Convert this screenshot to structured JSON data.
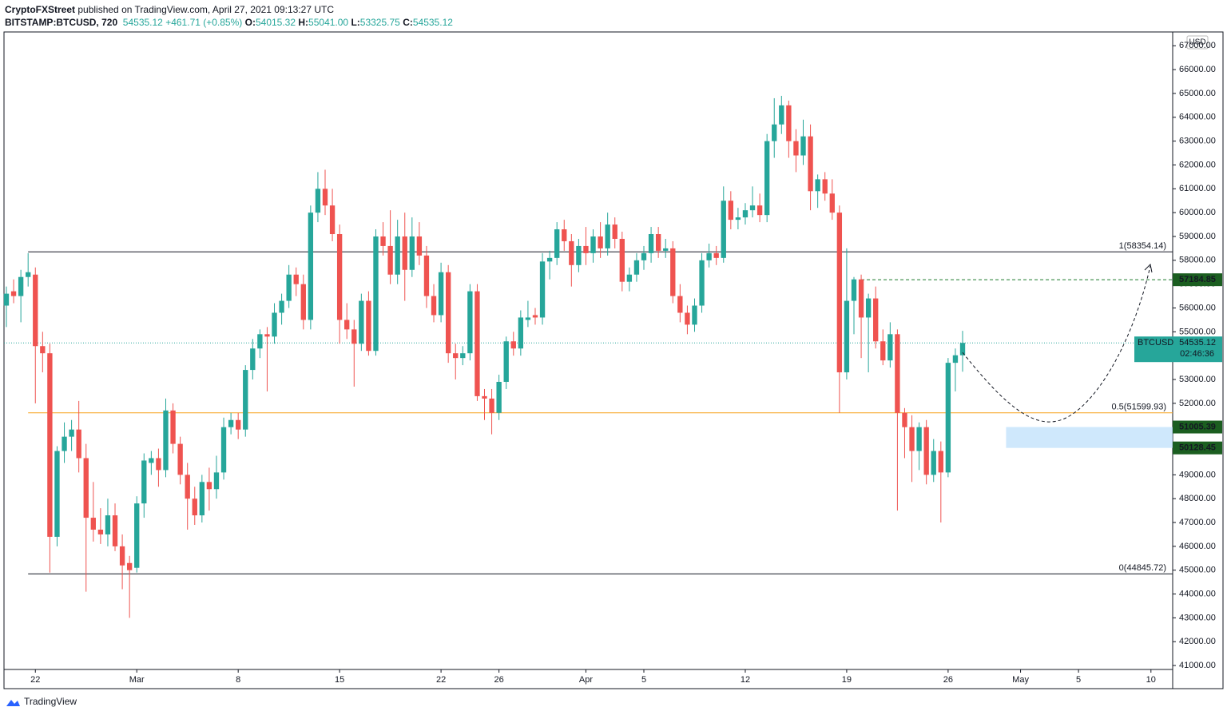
{
  "header": {
    "publisher": "CryptoFXStreet",
    "published": "published on TradingView.com, April 27, 2021 09:13:27 UTC",
    "symbol": "BITSTAMP:BTCUSD, 720",
    "last": "54535.12",
    "change": "+461.71 (+0.85%)",
    "o_label": "O:",
    "o": "54015.32",
    "h_label": "H:",
    "h": "55041.00",
    "l_label": "L:",
    "l": "53325.75",
    "c_label": "C:",
    "c": "54535.12"
  },
  "footer": {
    "brand": "TradingView"
  },
  "chart_data": {
    "type": "candlestick",
    "currency": "USD",
    "up_color": "#26a69a",
    "down_color": "#ef5350",
    "xlim": [
      -0.33,
      161
    ],
    "ylim": [
      40030,
      67580
    ],
    "xticks": [
      {
        "value": 4,
        "label": "22"
      },
      {
        "value": 18,
        "label": "Mar"
      },
      {
        "value": 32,
        "label": "8"
      },
      {
        "value": 46,
        "label": "15"
      },
      {
        "value": 60,
        "label": "22"
      },
      {
        "value": 68,
        "label": "26"
      },
      {
        "value": 80,
        "label": "Apr"
      },
      {
        "value": 88,
        "label": "5"
      },
      {
        "value": 102,
        "label": "12"
      },
      {
        "value": 116,
        "label": "19"
      },
      {
        "value": 130,
        "label": "26"
      },
      {
        "value": 140,
        "label": "May"
      },
      {
        "value": 148,
        "label": "5"
      },
      {
        "value": 158,
        "label": "10"
      }
    ],
    "yticks": [
      {
        "value": 41000,
        "label": "41000.00"
      },
      {
        "value": 42000,
        "label": "42000.00"
      },
      {
        "value": 43000,
        "label": "43000.00"
      },
      {
        "value": 44000,
        "label": "44000.00"
      },
      {
        "value": 45000,
        "label": "45000.00"
      },
      {
        "value": 46000,
        "label": "46000.00"
      },
      {
        "value": 47000,
        "label": "47000.00"
      },
      {
        "value": 48000,
        "label": "48000.00"
      },
      {
        "value": 49000,
        "label": "49000.00"
      },
      {
        "value": 50000,
        "label": "50000.00"
      },
      {
        "value": 51000,
        "label": "51000.00"
      },
      {
        "value": 52000,
        "label": "52000.00"
      },
      {
        "value": 53000,
        "label": "53000.00"
      },
      {
        "value": 54000,
        "label": "54000.00"
      },
      {
        "value": 55000,
        "label": "55000.00"
      },
      {
        "value": 56000,
        "label": "56000.00"
      },
      {
        "value": 57000,
        "label": "57000.00"
      },
      {
        "value": 58000,
        "label": "58000.00"
      },
      {
        "value": 59000,
        "label": "59000.00"
      },
      {
        "value": 60000,
        "label": "60000.00"
      },
      {
        "value": 61000,
        "label": "61000.00"
      },
      {
        "value": 62000,
        "label": "62000.00"
      },
      {
        "value": 63000,
        "label": "63000.00"
      },
      {
        "value": 64000,
        "label": "64000.00"
      },
      {
        "value": 65000,
        "label": "65000.00"
      },
      {
        "value": 66000,
        "label": "66000.00"
      },
      {
        "value": 67000,
        "label": "67000.00"
      }
    ],
    "levels": [
      {
        "label": "1(58354.14)",
        "value": 58354.14,
        "color": "#131722"
      },
      {
        "label": "0.5(51599.93)",
        "value": 51599.93,
        "color": "#f7a21b"
      },
      {
        "label": "0(44845.72)",
        "value": 44845.72,
        "color": "#131722"
      }
    ],
    "target": 57184.85,
    "zone": [
      51005.39,
      50128.45
    ],
    "price": {
      "symbol": "BTCUSD",
      "value": 54535.12,
      "countdown": "02:46:36"
    },
    "ohlc": [
      [
        56100,
        56900,
        55200,
        56600
      ],
      [
        56700,
        57200,
        56200,
        56500
      ],
      [
        56500,
        57600,
        55400,
        57300
      ],
      [
        57300,
        58300,
        56900,
        57500
      ],
      [
        57400,
        57700,
        52000,
        54400
      ],
      [
        54400,
        55000,
        53300,
        54100
      ],
      [
        54100,
        54500,
        44900,
        46400
      ],
      [
        46400,
        50200,
        46000,
        50000
      ],
      [
        50000,
        51200,
        49500,
        50600
      ],
      [
        50600,
        51300,
        50000,
        50900
      ],
      [
        50900,
        52100,
        49100,
        49700
      ],
      [
        49700,
        50300,
        44100,
        47200
      ],
      [
        47200,
        48700,
        46200,
        46700
      ],
      [
        46700,
        47600,
        46100,
        46500
      ],
      [
        46500,
        48000,
        46000,
        47300
      ],
      [
        47300,
        47800,
        45800,
        46000
      ],
      [
        46000,
        46500,
        44200,
        45200
      ],
      [
        45300,
        45600,
        43000,
        45000
      ],
      [
        45100,
        48100,
        44900,
        47800
      ],
      [
        47800,
        49900,
        47200,
        49600
      ],
      [
        49500,
        50000,
        49000,
        49700
      ],
      [
        49700,
        50100,
        48500,
        49200
      ],
      [
        49200,
        52200,
        48900,
        51700
      ],
      [
        51700,
        52000,
        49900,
        50300
      ],
      [
        50300,
        50600,
        48600,
        49000
      ],
      [
        49000,
        49500,
        46700,
        48000
      ],
      [
        48000,
        48500,
        46900,
        47300
      ],
      [
        47300,
        49000,
        47000,
        48700
      ],
      [
        48700,
        49300,
        47500,
        48400
      ],
      [
        48400,
        49800,
        48000,
        49100
      ],
      [
        49100,
        51400,
        48800,
        51000
      ],
      [
        51000,
        51600,
        50700,
        51300
      ],
      [
        51300,
        51600,
        50500,
        50900
      ],
      [
        50900,
        53600,
        50600,
        53400
      ],
      [
        53400,
        54700,
        53000,
        54300
      ],
      [
        54300,
        55100,
        53900,
        54900
      ],
      [
        54900,
        55200,
        52500,
        54800
      ],
      [
        54800,
        56200,
        54500,
        55800
      ],
      [
        55800,
        56600,
        55300,
        56300
      ],
      [
        56300,
        57800,
        56000,
        57400
      ],
      [
        57400,
        57700,
        56500,
        57000
      ],
      [
        57000,
        57400,
        55100,
        55500
      ],
      [
        55500,
        60300,
        55100,
        60000
      ],
      [
        60000,
        61700,
        59600,
        61000
      ],
      [
        61000,
        61800,
        59900,
        60300
      ],
      [
        60300,
        61000,
        58800,
        59100
      ],
      [
        59100,
        59500,
        54500,
        55500
      ],
      [
        55500,
        56200,
        54700,
        55100
      ],
      [
        55100,
        55500,
        52700,
        54500
      ],
      [
        54500,
        56600,
        54200,
        56300
      ],
      [
        56300,
        56700,
        54000,
        54200
      ],
      [
        54200,
        59300,
        54000,
        59000
      ],
      [
        59000,
        59600,
        58200,
        58600
      ],
      [
        58600,
        60100,
        57000,
        57400
      ],
      [
        57400,
        59700,
        57000,
        59000
      ],
      [
        59000,
        60000,
        56300,
        57600
      ],
      [
        57600,
        59800,
        57300,
        59000
      ],
      [
        59000,
        59600,
        57800,
        58200
      ],
      [
        58200,
        58600,
        56000,
        56500
      ],
      [
        56500,
        57000,
        55400,
        55700
      ],
      [
        55700,
        57900,
        55400,
        57500
      ],
      [
        57500,
        57800,
        53700,
        54100
      ],
      [
        54100,
        54500,
        53000,
        53900
      ],
      [
        53900,
        54400,
        53600,
        54100
      ],
      [
        54100,
        57000,
        53800,
        56700
      ],
      [
        56700,
        57000,
        52100,
        52300
      ],
      [
        52300,
        52600,
        51300,
        52200
      ],
      [
        52200,
        52600,
        50700,
        51600
      ],
      [
        51600,
        53200,
        51300,
        52900
      ],
      [
        52900,
        54800,
        52600,
        54600
      ],
      [
        54600,
        55000,
        54000,
        54300
      ],
      [
        54300,
        55900,
        54000,
        55600
      ],
      [
        55500,
        56300,
        55200,
        55600
      ],
      [
        55700,
        56000,
        55300,
        55600
      ],
      [
        55600,
        58300,
        55300,
        57950
      ],
      [
        57950,
        58400,
        57200,
        58100
      ],
      [
        58100,
        59600,
        57800,
        59300
      ],
      [
        59300,
        59700,
        58400,
        58800
      ],
      [
        58800,
        59100,
        56900,
        57800
      ],
      [
        57800,
        58900,
        57500,
        58600
      ],
      [
        58600,
        59400,
        57800,
        58300
      ],
      [
        58300,
        59300,
        57900,
        59000
      ],
      [
        59000,
        59600,
        58100,
        58500
      ],
      [
        58500,
        60000,
        58200,
        59500
      ],
      [
        59500,
        59800,
        58500,
        58900
      ],
      [
        58900,
        59200,
        56700,
        57100
      ],
      [
        57100,
        57700,
        56700,
        57400
      ],
      [
        57400,
        58300,
        57100,
        58000
      ],
      [
        58000,
        58600,
        57600,
        58300
      ],
      [
        58300,
        59400,
        57900,
        59100
      ],
      [
        59100,
        59400,
        58100,
        58400
      ],
      [
        58400,
        58900,
        58100,
        58500
      ],
      [
        58500,
        58800,
        56200,
        56500
      ],
      [
        56500,
        57000,
        55400,
        55800
      ],
      [
        55800,
        56100,
        54900,
        55300
      ],
      [
        55300,
        56400,
        55000,
        56100
      ],
      [
        56100,
        58300,
        55800,
        58000
      ],
      [
        58000,
        58700,
        57700,
        58300
      ],
      [
        58300,
        58600,
        57800,
        58100
      ],
      [
        58100,
        61100,
        57900,
        60500
      ],
      [
        60500,
        60900,
        59300,
        59700
      ],
      [
        59700,
        60200,
        59300,
        59800
      ],
      [
        59800,
        60400,
        59500,
        60100
      ],
      [
        60100,
        61100,
        59800,
        60300
      ],
      [
        60300,
        60800,
        59600,
        59900
      ],
      [
        59900,
        63300,
        59600,
        63000
      ],
      [
        63000,
        64800,
        62300,
        63700
      ],
      [
        63700,
        64900,
        63300,
        64500
      ],
      [
        64500,
        64700,
        62300,
        63000
      ],
      [
        63000,
        63500,
        61700,
        62400
      ],
      [
        62400,
        63900,
        62000,
        63200
      ],
      [
        63200,
        63700,
        60100,
        60900
      ],
      [
        60900,
        61600,
        60200,
        61400
      ],
      [
        61400,
        61700,
        60500,
        60800
      ],
      [
        60800,
        61400,
        59700,
        60000
      ],
      [
        60000,
        60300,
        51600,
        53300
      ],
      [
        53300,
        58500,
        53000,
        56300
      ],
      [
        56300,
        57300,
        54900,
        57200
      ],
      [
        57200,
        57400,
        53900,
        55600
      ],
      [
        55600,
        56600,
        53300,
        56400
      ],
      [
        56400,
        56900,
        54300,
        54600
      ],
      [
        54600,
        55100,
        53600,
        53800
      ],
      [
        53800,
        55400,
        53500,
        54900
      ],
      [
        54900,
        55100,
        47500,
        51600
      ],
      [
        51600,
        51800,
        49700,
        51000
      ],
      [
        51000,
        51500,
        48700,
        50000
      ],
      [
        50000,
        51200,
        49200,
        51000
      ],
      [
        51000,
        51300,
        48600,
        49000
      ],
      [
        49000,
        50500,
        48700,
        50000
      ],
      [
        50000,
        50400,
        47000,
        49100
      ],
      [
        49100,
        53900,
        48900,
        53700
      ],
      [
        53700,
        54300,
        52500,
        54015.32
      ],
      [
        54015.32,
        55041,
        53325.75,
        54535.12
      ]
    ]
  }
}
